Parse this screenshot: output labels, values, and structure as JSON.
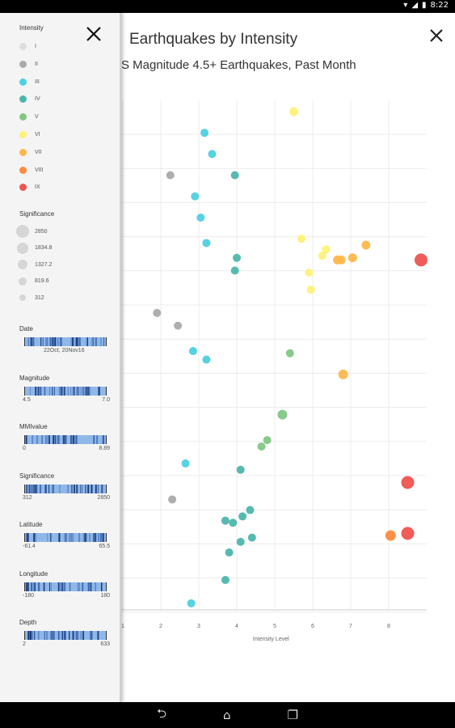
{
  "status": {
    "time": "8:22"
  },
  "title": "Earthquakes by Intensity",
  "subtitle": "S Magnitude 4.5+ Earthquakes, Past Month",
  "sidebar": {
    "intensity_title": "Intensity",
    "intensity_legend": [
      {
        "label": "I",
        "color": "#dddddd"
      },
      {
        "label": "II",
        "color": "#aaaaaa"
      },
      {
        "label": "III",
        "color": "#4dd0e1"
      },
      {
        "label": "IV",
        "color": "#4db6ac"
      },
      {
        "label": "V",
        "color": "#81c784"
      },
      {
        "label": "VI",
        "color": "#fff176"
      },
      {
        "label": "VII",
        "color": "#ffb74d"
      },
      {
        "label": "VIII",
        "color": "#ff8a3d"
      },
      {
        "label": "IX",
        "color": "#ef5350"
      }
    ],
    "significance_title": "Significance",
    "significance_legend": [
      {
        "label": "2850",
        "size": 16
      },
      {
        "label": "1834.8",
        "size": 14
      },
      {
        "label": "1327.2",
        "size": 12
      },
      {
        "label": "819.6",
        "size": 10
      },
      {
        "label": "312",
        "size": 8
      }
    ],
    "filters": [
      {
        "label": "Date",
        "min": "",
        "max": "",
        "center": "22Oct, 20Nov16"
      },
      {
        "label": "Magnitude",
        "min": "4.5",
        "max": "7.0"
      },
      {
        "label": "MMIvalue",
        "min": "0",
        "max": "8.89"
      },
      {
        "label": "Significance",
        "min": "312",
        "max": "2850"
      },
      {
        "label": "Latitude",
        "min": "-61.4",
        "max": "65.5"
      },
      {
        "label": "Longitude",
        "min": "-180",
        "max": "180"
      },
      {
        "label": "Depth",
        "min": "2",
        "max": "633"
      }
    ]
  },
  "chart_data": {
    "type": "scatter",
    "xlabel": "Intensity Level",
    "ylabel": "",
    "xlim": [
      1,
      9
    ],
    "xticks": [
      "1",
      "2",
      "3",
      "4",
      "5",
      "6",
      "7",
      "8"
    ],
    "grid": true,
    "points": [
      {
        "x": 5.5,
        "row": 0,
        "mmi": 6,
        "r": 5.5
      },
      {
        "x": 3.15,
        "row": 1,
        "mmi": 3,
        "r": 5
      },
      {
        "x": 3.35,
        "row": 2,
        "mmi": 3,
        "r": 5
      },
      {
        "x": 2.25,
        "row": 3,
        "mmi": 2,
        "r": 5
      },
      {
        "x": 3.95,
        "row": 3,
        "mmi": 4,
        "r": 5
      },
      {
        "x": 2.9,
        "row": 4,
        "mmi": 3,
        "r": 5
      },
      {
        "x": 3.05,
        "row": 5,
        "mmi": 3,
        "r": 5
      },
      {
        "x": 5.7,
        "row": 6,
        "mmi": 6,
        "r": 5
      },
      {
        "x": 3.2,
        "row": 6.2,
        "mmi": 3,
        "r": 5
      },
      {
        "x": 7.4,
        "row": 6.3,
        "mmi": 7,
        "r": 5.5
      },
      {
        "x": 6.35,
        "row": 6.5,
        "mmi": 6,
        "r": 5
      },
      {
        "x": 6.25,
        "row": 6.8,
        "mmi": 6,
        "r": 5
      },
      {
        "x": 6.65,
        "row": 7,
        "mmi": 7,
        "r": 5.5
      },
      {
        "x": 6.75,
        "row": 7,
        "mmi": 7,
        "r": 5.5
      },
      {
        "x": 7.05,
        "row": 6.9,
        "mmi": 7,
        "r": 5.5
      },
      {
        "x": 8.85,
        "row": 7,
        "mmi": 9,
        "r": 8
      },
      {
        "x": 4.0,
        "row": 6.9,
        "mmi": 4,
        "r": 5
      },
      {
        "x": 3.95,
        "row": 7.5,
        "mmi": 4,
        "r": 5
      },
      {
        "x": 5.9,
        "row": 7.6,
        "mmi": 6,
        "r": 5
      },
      {
        "x": 5.95,
        "row": 8.4,
        "mmi": 6,
        "r": 5
      },
      {
        "x": 1.9,
        "row": 9.5,
        "mmi": 2,
        "r": 5
      },
      {
        "x": 2.45,
        "row": 10.1,
        "mmi": 2,
        "r": 5
      },
      {
        "x": 2.85,
        "row": 11.3,
        "mmi": 3,
        "r": 5
      },
      {
        "x": 3.2,
        "row": 11.7,
        "mmi": 3,
        "r": 5
      },
      {
        "x": 5.4,
        "row": 11.4,
        "mmi": 5,
        "r": 5
      },
      {
        "x": 6.8,
        "row": 12.4,
        "mmi": 7,
        "r": 6
      },
      {
        "x": 5.2,
        "row": 14.3,
        "mmi": 5,
        "r": 6
      },
      {
        "x": 4.8,
        "row": 15.5,
        "mmi": 5,
        "r": 5
      },
      {
        "x": 4.65,
        "row": 15.8,
        "mmi": 5,
        "r": 5
      },
      {
        "x": 2.65,
        "row": 16.6,
        "mmi": 3,
        "r": 5
      },
      {
        "x": 4.1,
        "row": 16.9,
        "mmi": 4,
        "r": 5
      },
      {
        "x": 8.5,
        "row": 17.5,
        "mmi": 9,
        "r": 8
      },
      {
        "x": 2.3,
        "row": 18.3,
        "mmi": 2,
        "r": 5
      },
      {
        "x": 4.35,
        "row": 18.8,
        "mmi": 4,
        "r": 5
      },
      {
        "x": 4.15,
        "row": 19.1,
        "mmi": 4,
        "r": 5
      },
      {
        "x": 3.7,
        "row": 19.3,
        "mmi": 4,
        "r": 5
      },
      {
        "x": 3.9,
        "row": 19.4,
        "mmi": 4,
        "r": 5
      },
      {
        "x": 8.05,
        "row": 20.0,
        "mmi": 8,
        "r": 6.5
      },
      {
        "x": 8.5,
        "row": 19.9,
        "mmi": 9,
        "r": 8
      },
      {
        "x": 4.4,
        "row": 20.1,
        "mmi": 4,
        "r": 5
      },
      {
        "x": 4.1,
        "row": 20.3,
        "mmi": 4,
        "r": 5
      },
      {
        "x": 3.8,
        "row": 20.8,
        "mmi": 4,
        "r": 5
      },
      {
        "x": 3.7,
        "row": 22.1,
        "mmi": 4,
        "r": 5
      },
      {
        "x": 2.8,
        "row": 23.2,
        "mmi": 3,
        "r": 5
      }
    ]
  }
}
